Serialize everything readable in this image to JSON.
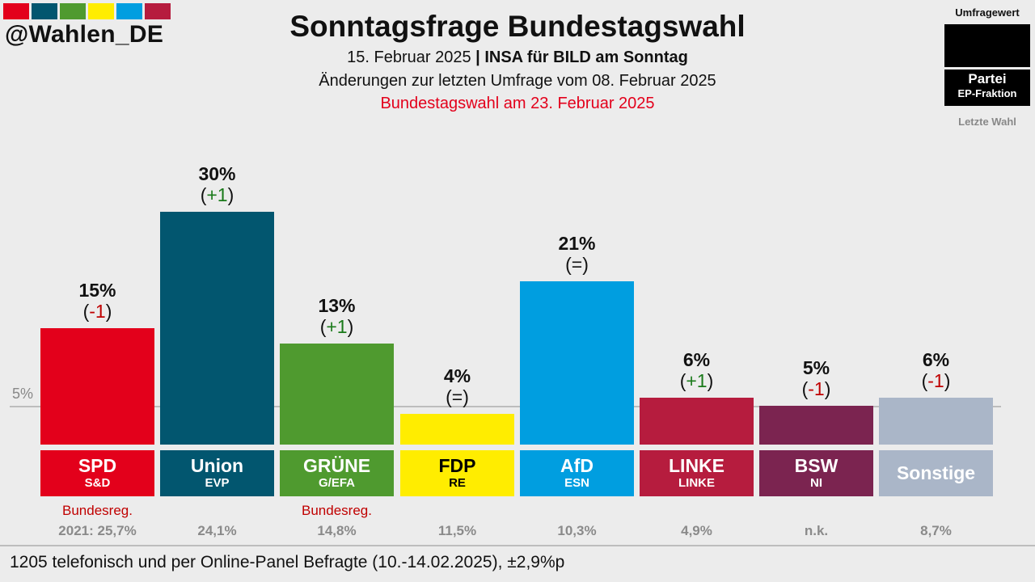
{
  "branding": {
    "handle": "@Wahlen_DE",
    "strip_colors": [
      "#e3001b",
      "#02566f",
      "#4f9a2f",
      "#ffed00",
      "#009ee0",
      "#b61c3e"
    ]
  },
  "header": {
    "title": "Sonntagsfrage Bundestagswahl",
    "date": "15. Februar 2025",
    "separator": " | ",
    "institute": "INSA für BILD am Sonntag",
    "changes_note": "Änderungen zur letzten Umfrage vom 08. Februar 2025",
    "election_note": "Bundestagswahl am 23. Februar 2025"
  },
  "legend": {
    "poll_value": "Umfragewert",
    "party": "Partei",
    "fraction": "EP-Fraktion",
    "last_election": "Letzte Wahl"
  },
  "footer": "1205 telefonisch und per Online-Panel Befragte (10.-14.02.2025), ±2,9%p",
  "chart_data": {
    "type": "bar",
    "title": "Sonntagsfrage Bundestagswahl",
    "ylim": [
      0,
      30
    ],
    "reference_line": {
      "value": 5,
      "label": "5%"
    },
    "categories": [
      "SPD",
      "Union",
      "GRÜNE",
      "FDP",
      "AfD",
      "LINKE",
      "BSW",
      "Sonstige"
    ],
    "values": [
      15,
      30,
      13,
      4,
      21,
      6,
      5,
      6
    ],
    "parties": [
      {
        "name": "SPD",
        "fraction": "S&D",
        "value": 15,
        "label": "15%",
        "change_open": "(",
        "change": "-1",
        "change_close": ")",
        "trend": "down",
        "color": "#e3001b",
        "text_color": "#ffffff",
        "gov": "Bundesreg.",
        "last": "2021: 25,7%"
      },
      {
        "name": "Union",
        "fraction": "EVP",
        "value": 30,
        "label": "30%",
        "change_open": "(",
        "change": "+1",
        "change_close": ")",
        "trend": "up",
        "color": "#02566f",
        "text_color": "#ffffff",
        "gov": "",
        "last": "24,1%"
      },
      {
        "name": "GRÜNE",
        "fraction": "G/EFA",
        "value": 13,
        "label": "13%",
        "change_open": "(",
        "change": "+1",
        "change_close": ")",
        "trend": "up",
        "color": "#4f9a2f",
        "text_color": "#ffffff",
        "gov": "Bundesreg.",
        "last": "14,8%"
      },
      {
        "name": "FDP",
        "fraction": "RE",
        "value": 4,
        "label": "4%",
        "change_open": "(",
        "change": "=",
        "change_close": ")",
        "trend": "same",
        "color": "#ffed00",
        "text_color": "#000000",
        "gov": "",
        "last": "11,5%"
      },
      {
        "name": "AfD",
        "fraction": "ESN",
        "value": 21,
        "label": "21%",
        "change_open": "(",
        "change": "=",
        "change_close": ")",
        "trend": "same",
        "color": "#009ee0",
        "text_color": "#ffffff",
        "gov": "",
        "last": "10,3%"
      },
      {
        "name": "LINKE",
        "fraction": "LINKE",
        "value": 6,
        "label": "6%",
        "change_open": "(",
        "change": "+1",
        "change_close": ")",
        "trend": "up",
        "color": "#b61c3e",
        "text_color": "#ffffff",
        "gov": "",
        "last": "4,9%"
      },
      {
        "name": "BSW",
        "fraction": "NI",
        "value": 5,
        "label": "5%",
        "change_open": "(",
        "change": "-1",
        "change_close": ")",
        "trend": "down",
        "color": "#7b2450",
        "text_color": "#ffffff",
        "gov": "",
        "last": "n.k."
      },
      {
        "name": "Sonstige",
        "fraction": "",
        "value": 6,
        "label": "6%",
        "change_open": "(",
        "change": "-1",
        "change_close": ")",
        "trend": "down",
        "color": "#aab6c8",
        "text_color": "#ffffff",
        "gov": "",
        "last": "8,7%"
      }
    ],
    "trend_colors": {
      "up": "#1a7a1a",
      "down": "#c00000",
      "same": "#111111"
    }
  }
}
